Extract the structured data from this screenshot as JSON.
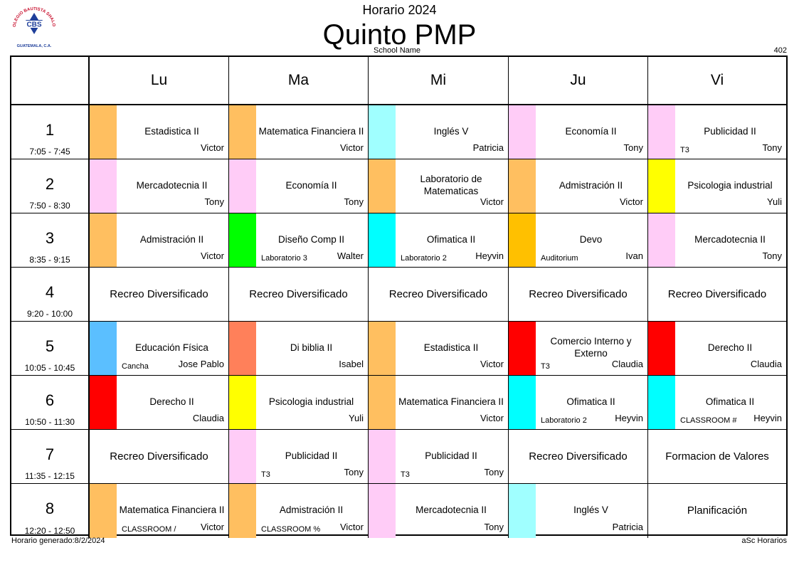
{
  "header": {
    "logo_text": "CBS",
    "logo_ring": "COLEGIO BAUTISTA SHALOM",
    "logo_bottom": "GUATEMALA, C.A.",
    "title_top": "Horario 2024",
    "title_main": "Quinto PMP",
    "school_name": "School Name",
    "room": "402"
  },
  "days": [
    "Lu",
    "Ma",
    "Mi",
    "Ju",
    "Vi"
  ],
  "periods": [
    {
      "num": "1",
      "time": "7:05 - 7:45"
    },
    {
      "num": "2",
      "time": "7:50 - 8:30"
    },
    {
      "num": "3",
      "time": "8:35 - 9:15"
    },
    {
      "num": "4",
      "time": "9:20 - 10:00"
    },
    {
      "num": "5",
      "time": "10:05 - 10:45"
    },
    {
      "num": "6",
      "time": "10:50 - 11:30"
    },
    {
      "num": "7",
      "time": "11:35 - 12:15"
    },
    {
      "num": "8",
      "time": "12:20 - 12:50"
    }
  ],
  "colors": {
    "orange": "#FFBF60",
    "pink": "#FFCCF7",
    "lightcyan": "#A0FFFF",
    "cyan": "#00FFFF",
    "yellow": "#FFFF00",
    "green": "#00FF00",
    "gold": "#FFC000",
    "skyblue": "#5BBFFF",
    "salmon": "#FF805A",
    "red": "#FF0000"
  },
  "schedule": [
    [
      {
        "subject": "Estadistica II",
        "teacher": "Victor",
        "loc": "",
        "color": "#FFBF60"
      },
      {
        "subject": "Matematica Financiera II",
        "teacher": "Victor",
        "loc": "",
        "color": "#FFBF60"
      },
      {
        "subject": "Inglés V",
        "teacher": "Patricia",
        "loc": "",
        "color": "#A0FFFF"
      },
      {
        "subject": "Economía II",
        "teacher": "Tony",
        "loc": "",
        "color": "#FFCCF7"
      },
      {
        "subject": "Publicidad II",
        "teacher": "Tony",
        "loc": "T3",
        "color": "#FFCCF7"
      }
    ],
    [
      {
        "subject": "Mercadotecnia II",
        "teacher": "Tony",
        "loc": "",
        "color": "#FFCCF7"
      },
      {
        "subject": "Economía II",
        "teacher": "Tony",
        "loc": "",
        "color": "#FFCCF7"
      },
      {
        "subject": "Laboratorio de Matematicas",
        "teacher": "Victor",
        "loc": "",
        "color": "#FFBF60"
      },
      {
        "subject": "Admistración II",
        "teacher": "Victor",
        "loc": "",
        "color": "#FFBF60"
      },
      {
        "subject": "Psicologia industrial",
        "teacher": "Yuli",
        "loc": "",
        "color": "#FFFF00"
      }
    ],
    [
      {
        "subject": "Admistración II",
        "teacher": "Victor",
        "loc": "",
        "color": "#FFBF60"
      },
      {
        "subject": "Diseño Comp II",
        "teacher": "Walter",
        "loc": "Laboratorio 3",
        "color": "#00FF00"
      },
      {
        "subject": "Ofimatica II",
        "teacher": "Heyvin",
        "loc": "Laboratorio 2",
        "color": "#00FFFF"
      },
      {
        "subject": "Devo",
        "teacher": "Ivan",
        "loc": "Auditorium",
        "color": "#FFC000"
      },
      {
        "subject": "Mercadotecnia II",
        "teacher": "Tony",
        "loc": "",
        "color": "#FFCCF7"
      }
    ],
    [
      {
        "subject": "Recreo Diversificado",
        "plain": true
      },
      {
        "subject": "Recreo Diversificado",
        "plain": true
      },
      {
        "subject": "Recreo Diversificado",
        "plain": true
      },
      {
        "subject": "Recreo Diversificado",
        "plain": true
      },
      {
        "subject": "Recreo Diversificado",
        "plain": true
      }
    ],
    [
      {
        "subject": "Educación Física",
        "teacher": "Jose Pablo",
        "loc": "Cancha",
        "color": "#5BBFFF"
      },
      {
        "subject": "Di biblia II",
        "teacher": "Isabel",
        "loc": "",
        "color": "#FF805A"
      },
      {
        "subject": "Estadistica II",
        "teacher": "Victor",
        "loc": "",
        "color": "#FFBF60"
      },
      {
        "subject": "Comercio Interno y Externo",
        "teacher": "Claudia",
        "loc": "T3",
        "color": "#FF0000"
      },
      {
        "subject": "Derecho II",
        "teacher": "Claudia",
        "loc": "",
        "color": "#FF0000"
      }
    ],
    [
      {
        "subject": "Derecho II",
        "teacher": "Claudia",
        "loc": "",
        "color": "#FF0000"
      },
      {
        "subject": "Psicologia industrial",
        "teacher": "Yuli",
        "loc": "",
        "color": "#FFFF00"
      },
      {
        "subject": "Matematica Financiera II",
        "teacher": "Victor",
        "loc": "",
        "color": "#FFBF60"
      },
      {
        "subject": "Ofimatica II",
        "teacher": "Heyvin",
        "loc": "Laboratorio 2",
        "color": "#00FFFF"
      },
      {
        "subject": "Ofimatica II",
        "teacher": "Heyvin",
        "loc": "CLASSROOM #",
        "color": "#00FFFF"
      }
    ],
    [
      {
        "subject": "Recreo Diversificado",
        "plain": true
      },
      {
        "subject": "Publicidad II",
        "teacher": "Tony",
        "loc": "T3",
        "color": "#FFCCF7"
      },
      {
        "subject": "Publicidad II",
        "teacher": "Tony",
        "loc": "T3",
        "color": "#FFCCF7"
      },
      {
        "subject": "Recreo Diversificado",
        "plain": true
      },
      {
        "subject": "Formacion de Valores",
        "plain": true
      }
    ],
    [
      {
        "subject": "Matematica Financiera II",
        "teacher": "Victor",
        "loc": "CLASSROOM /",
        "color": "#FFBF60"
      },
      {
        "subject": "Admistración II",
        "teacher": "Victor",
        "loc": "CLASSROOM %",
        "color": "#FFBF60"
      },
      {
        "subject": "Mercadotecnia II",
        "teacher": "Tony",
        "loc": "",
        "color": "#FFCCF7"
      },
      {
        "subject": "Inglés V",
        "teacher": "Patricia",
        "loc": "",
        "color": "#A0FFFF"
      },
      {
        "subject": "Planificación",
        "plain": true
      }
    ]
  ],
  "footer": {
    "generated": "Horario generado:8/2/2024",
    "brand": "aSc Horarios"
  }
}
